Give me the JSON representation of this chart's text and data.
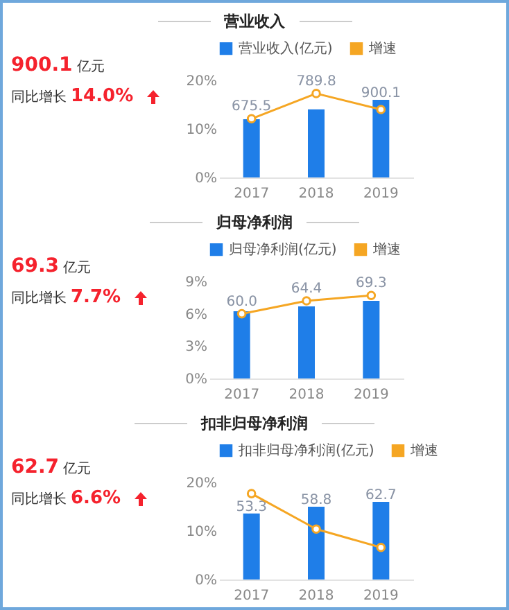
{
  "chart_data": [
    {
      "type": "other",
      "title": "营业收入",
      "annotations": [
        "900.1",
        "亿元",
        "同比增长",
        "14.0%"
      ]
    },
    {
      "type": "bar",
      "categories": [
        "2017",
        "2018",
        "2019"
      ],
      "series": [
        {
          "name": "营业收入(亿元)",
          "color": "#1f7ee8",
          "values": [
            675.5,
            789.8,
            900.1
          ],
          "axis": "y2",
          "value_labels": [
            "675.5",
            "789.8",
            "900.1"
          ]
        },
        {
          "name": "增速",
          "type": "line",
          "color": "#f5a623",
          "values": [
            12.1,
            17.3,
            14.0
          ]
        }
      ],
      "ylim": [
        0,
        20
      ],
      "yticks": [
        {
          "value": 0,
          "label": "0%"
        },
        {
          "value": 10,
          "label": "10%"
        },
        {
          "value": 20,
          "label": "20%"
        }
      ],
      "legend": "top right",
      "marker": "circle"
    },
    {
      "type": "other",
      "title": "归母净利润",
      "annotations": [
        "69.3",
        "亿元",
        "同比增长",
        "7.7%"
      ]
    },
    {
      "type": "bar",
      "categories": [
        "2017",
        "2018",
        "2019"
      ],
      "series": [
        {
          "name": "归母净利润(亿元)",
          "color": "#1f7ee8",
          "values": [
            60.0,
            64.4,
            69.3
          ],
          "axis": "y2",
          "value_labels": [
            "60.0",
            "64.4",
            "69.3"
          ]
        },
        {
          "name": "增速",
          "type": "line",
          "color": "#f5a623",
          "values": [
            6.0,
            7.2,
            7.7
          ]
        }
      ],
      "ylim": [
        0,
        9
      ],
      "yticks": [
        {
          "value": 0,
          "label": "0%"
        },
        {
          "value": 3,
          "label": "3%"
        },
        {
          "value": 6,
          "label": "6%"
        },
        {
          "value": 9,
          "label": "9%"
        }
      ],
      "legend": "top right",
      "marker": "circle"
    },
    {
      "type": "other",
      "title": "扣非归母净利润",
      "annotations": [
        "62.7",
        "亿元",
        "同比增长",
        "6.6%"
      ]
    },
    {
      "type": "bar",
      "categories": [
        "2017",
        "2018",
        "2019"
      ],
      "series": [
        {
          "name": "扣非归母净利润(亿元)",
          "color": "#1f7ee8",
          "values": [
            53.3,
            58.8,
            62.7
          ],
          "axis": "y2",
          "value_labels": [
            "53.3",
            "58.8",
            "62.7"
          ]
        },
        {
          "name": "增速",
          "type": "line",
          "color": "#f5a623",
          "values": [
            17.7,
            10.4,
            6.6
          ]
        }
      ],
      "ylim": [
        0,
        20
      ],
      "yticks": [
        {
          "value": 0,
          "label": "0%"
        },
        {
          "value": 10,
          "label": "10%"
        },
        {
          "value": 20,
          "label": "20%"
        }
      ],
      "legend": "top right",
      "marker": "circle"
    }
  ]
}
